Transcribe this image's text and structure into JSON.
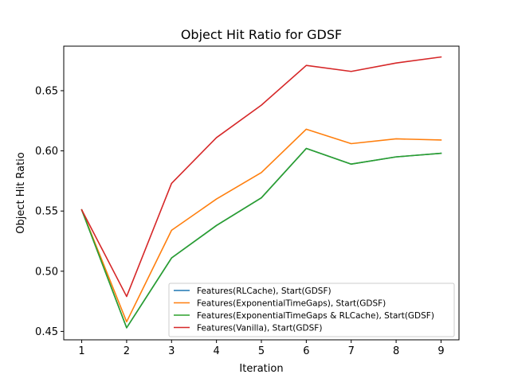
{
  "chart_data": {
    "type": "line",
    "title": "Object Hit Ratio for GDSF",
    "xlabel": "Iteration",
    "ylabel": "Object Hit Ratio",
    "x": [
      1,
      2,
      3,
      4,
      5,
      6,
      7,
      8,
      9
    ],
    "xlim": [
      0.6,
      9.4
    ],
    "ylim": [
      0.443,
      0.687
    ],
    "yticks": [
      0.45,
      0.5,
      0.55,
      0.6,
      0.65
    ],
    "ytick_labels": [
      "0.45",
      "0.50",
      "0.55",
      "0.60",
      "0.65"
    ],
    "xtick_labels": [
      "1",
      "2",
      "3",
      "4",
      "5",
      "6",
      "7",
      "8",
      "9"
    ],
    "grid": false,
    "legend_position": "lower-right",
    "series": [
      {
        "name": "Features(RLCache), Start(GDSF)",
        "color": "#1f77b4",
        "values": [
          0.551,
          0.453,
          0.511,
          0.538,
          0.561,
          0.602,
          0.589,
          0.595,
          0.598
        ]
      },
      {
        "name": "Features(ExponentialTimeGaps), Start(GDSF)",
        "color": "#ff7f0e",
        "values": [
          0.551,
          0.458,
          0.534,
          0.56,
          0.582,
          0.618,
          0.606,
          0.61,
          0.609
        ]
      },
      {
        "name": "Features(ExponentialTimeGaps & RLCache), Start(GDSF)",
        "color": "#2ca02c",
        "values": [
          0.551,
          0.453,
          0.511,
          0.538,
          0.561,
          0.602,
          0.589,
          0.595,
          0.598
        ]
      },
      {
        "name": "Features(Vanilla), Start(GDSF)",
        "color": "#d62728",
        "values": [
          0.551,
          0.479,
          0.573,
          0.611,
          0.638,
          0.671,
          0.666,
          0.673,
          0.678
        ]
      }
    ]
  }
}
